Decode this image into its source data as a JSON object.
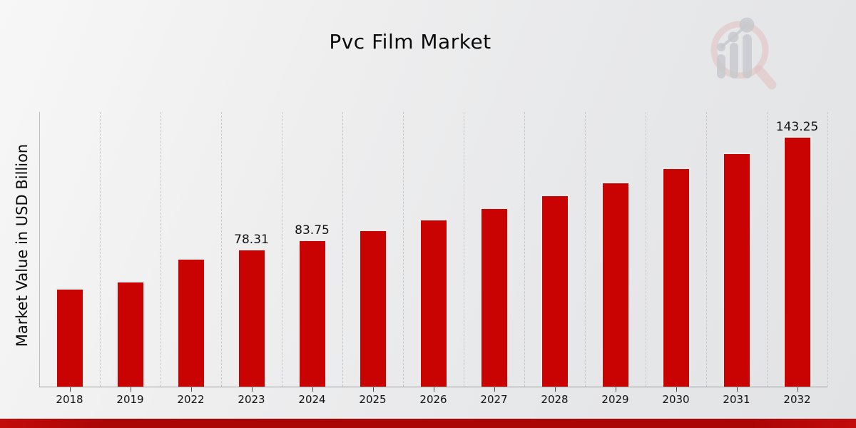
{
  "header": {
    "title": "Pvc Film Market"
  },
  "chart_data": {
    "type": "bar",
    "title": "Pvc Film Market",
    "xlabel": "",
    "ylabel": "Market Value in USD Billion",
    "categories": [
      "2018",
      "2019",
      "2022",
      "2023",
      "2024",
      "2025",
      "2026",
      "2027",
      "2028",
      "2029",
      "2030",
      "2031",
      "2032"
    ],
    "values": [
      56.0,
      59.9,
      73.2,
      78.31,
      83.75,
      89.56,
      95.78,
      102.42,
      109.53,
      117.13,
      125.26,
      133.95,
      143.25
    ],
    "bar_labels": [
      "",
      "",
      "",
      "78.31",
      "83.75",
      "",
      "",
      "",
      "",
      "",
      "",
      "",
      "143.25"
    ],
    "ylim": [
      0,
      159
    ],
    "grid": "vertical-dashed",
    "legend": "none",
    "bar_color": "#c80302",
    "axis_color": "#9f9fa0"
  },
  "branding": {
    "watermark_icon": "magnifier-bar-chart-logo",
    "footer_bar_color": "#ab0606",
    "footer_bar_edge_color": "#c30b0b"
  }
}
